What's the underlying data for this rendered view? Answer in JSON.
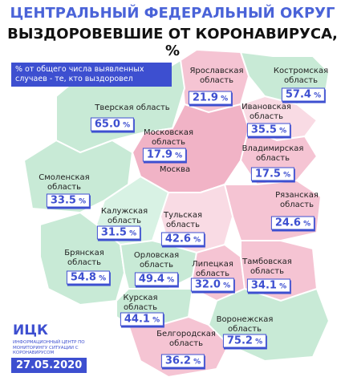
{
  "header": {
    "title": "ЦЕНТРАЛЬНЫЙ ФЕДЕРАЛЬНЫЙ ОКРУГ",
    "subtitle": "ВЫЗДОРОВЕВШИЕ ОТ КОРОНАВИРУСА, %"
  },
  "legend": "% от общего числа выявленных случаев - те, кто выздоровел",
  "unit": "%",
  "regions": [
    {
      "name": "Ярославская область",
      "value": 21.9
    },
    {
      "name": "Костромская область",
      "value": 57.4
    },
    {
      "name": "Тверская область",
      "value": 65.0
    },
    {
      "name": "Ивановская область",
      "value": 35.5
    },
    {
      "name": "Московская область",
      "value": 17.9
    },
    {
      "name": "Владимирская область",
      "value": 17.5
    },
    {
      "name": "Смоленская область",
      "value": 33.5
    },
    {
      "name": "Рязанская область",
      "value": 24.6
    },
    {
      "name": "Калужская область",
      "value": 31.5
    },
    {
      "name": "Тульская область",
      "value": 42.6
    },
    {
      "name": "Брянская область",
      "value": 54.8
    },
    {
      "name": "Орловская область",
      "value": 49.4
    },
    {
      "name": "Липецкая область",
      "value": 32.0
    },
    {
      "name": "Тамбовская область",
      "value": 34.1
    },
    {
      "name": "Курская область",
      "value": 44.1
    },
    {
      "name": "Воронежская область",
      "value": 75.2
    },
    {
      "name": "Белгородская область",
      "value": 36.2
    }
  ],
  "city": "Москва",
  "logo": {
    "abbr": "ИЦК",
    "text": "ИНФОРМАЦИОННЫЙ ЦЕНТР ПО МОНИТОРИНГУ СИТУАЦИИ С КОРОНАВИРУСОМ"
  },
  "date": "27.05.2020"
}
